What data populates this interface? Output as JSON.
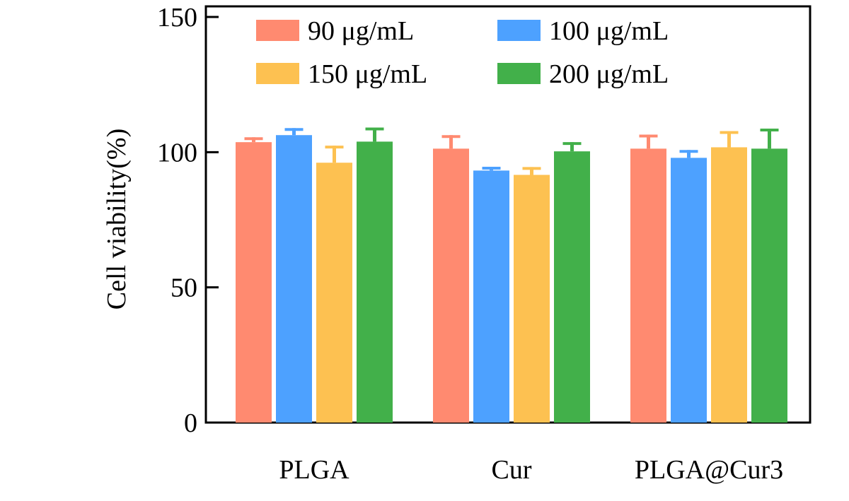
{
  "chart_data": {
    "type": "bar",
    "title": "",
    "xlabel": "",
    "ylabel": "Cell viability(%)",
    "ylim": [
      0,
      150
    ],
    "yticks": [
      0,
      50,
      100,
      150
    ],
    "grid": false,
    "legend_position": "top",
    "categories": [
      "PLGA",
      "Cur",
      "PLGA@Cur3"
    ],
    "series": [
      {
        "name": "90 μg/mL",
        "color": "#FF8A70",
        "values": [
          103.7,
          101.3,
          101.3
        ],
        "errors": [
          1.8,
          5.0,
          5.2
        ]
      },
      {
        "name": "100 μg/mL",
        "color": "#4DA1FF",
        "values": [
          106.3,
          93.2,
          97.9
        ],
        "errors": [
          2.6,
          1.4,
          2.9
        ]
      },
      {
        "name": "150 μg/mL",
        "color": "#FDC151",
        "values": [
          96.1,
          91.6,
          101.8
        ],
        "errors": [
          6.3,
          2.9,
          6.0
        ]
      },
      {
        "name": "200 μg/mL",
        "color": "#42B04A",
        "values": [
          103.9,
          100.3,
          101.3
        ],
        "errors": [
          5.2,
          3.4,
          7.4
        ]
      }
    ]
  }
}
